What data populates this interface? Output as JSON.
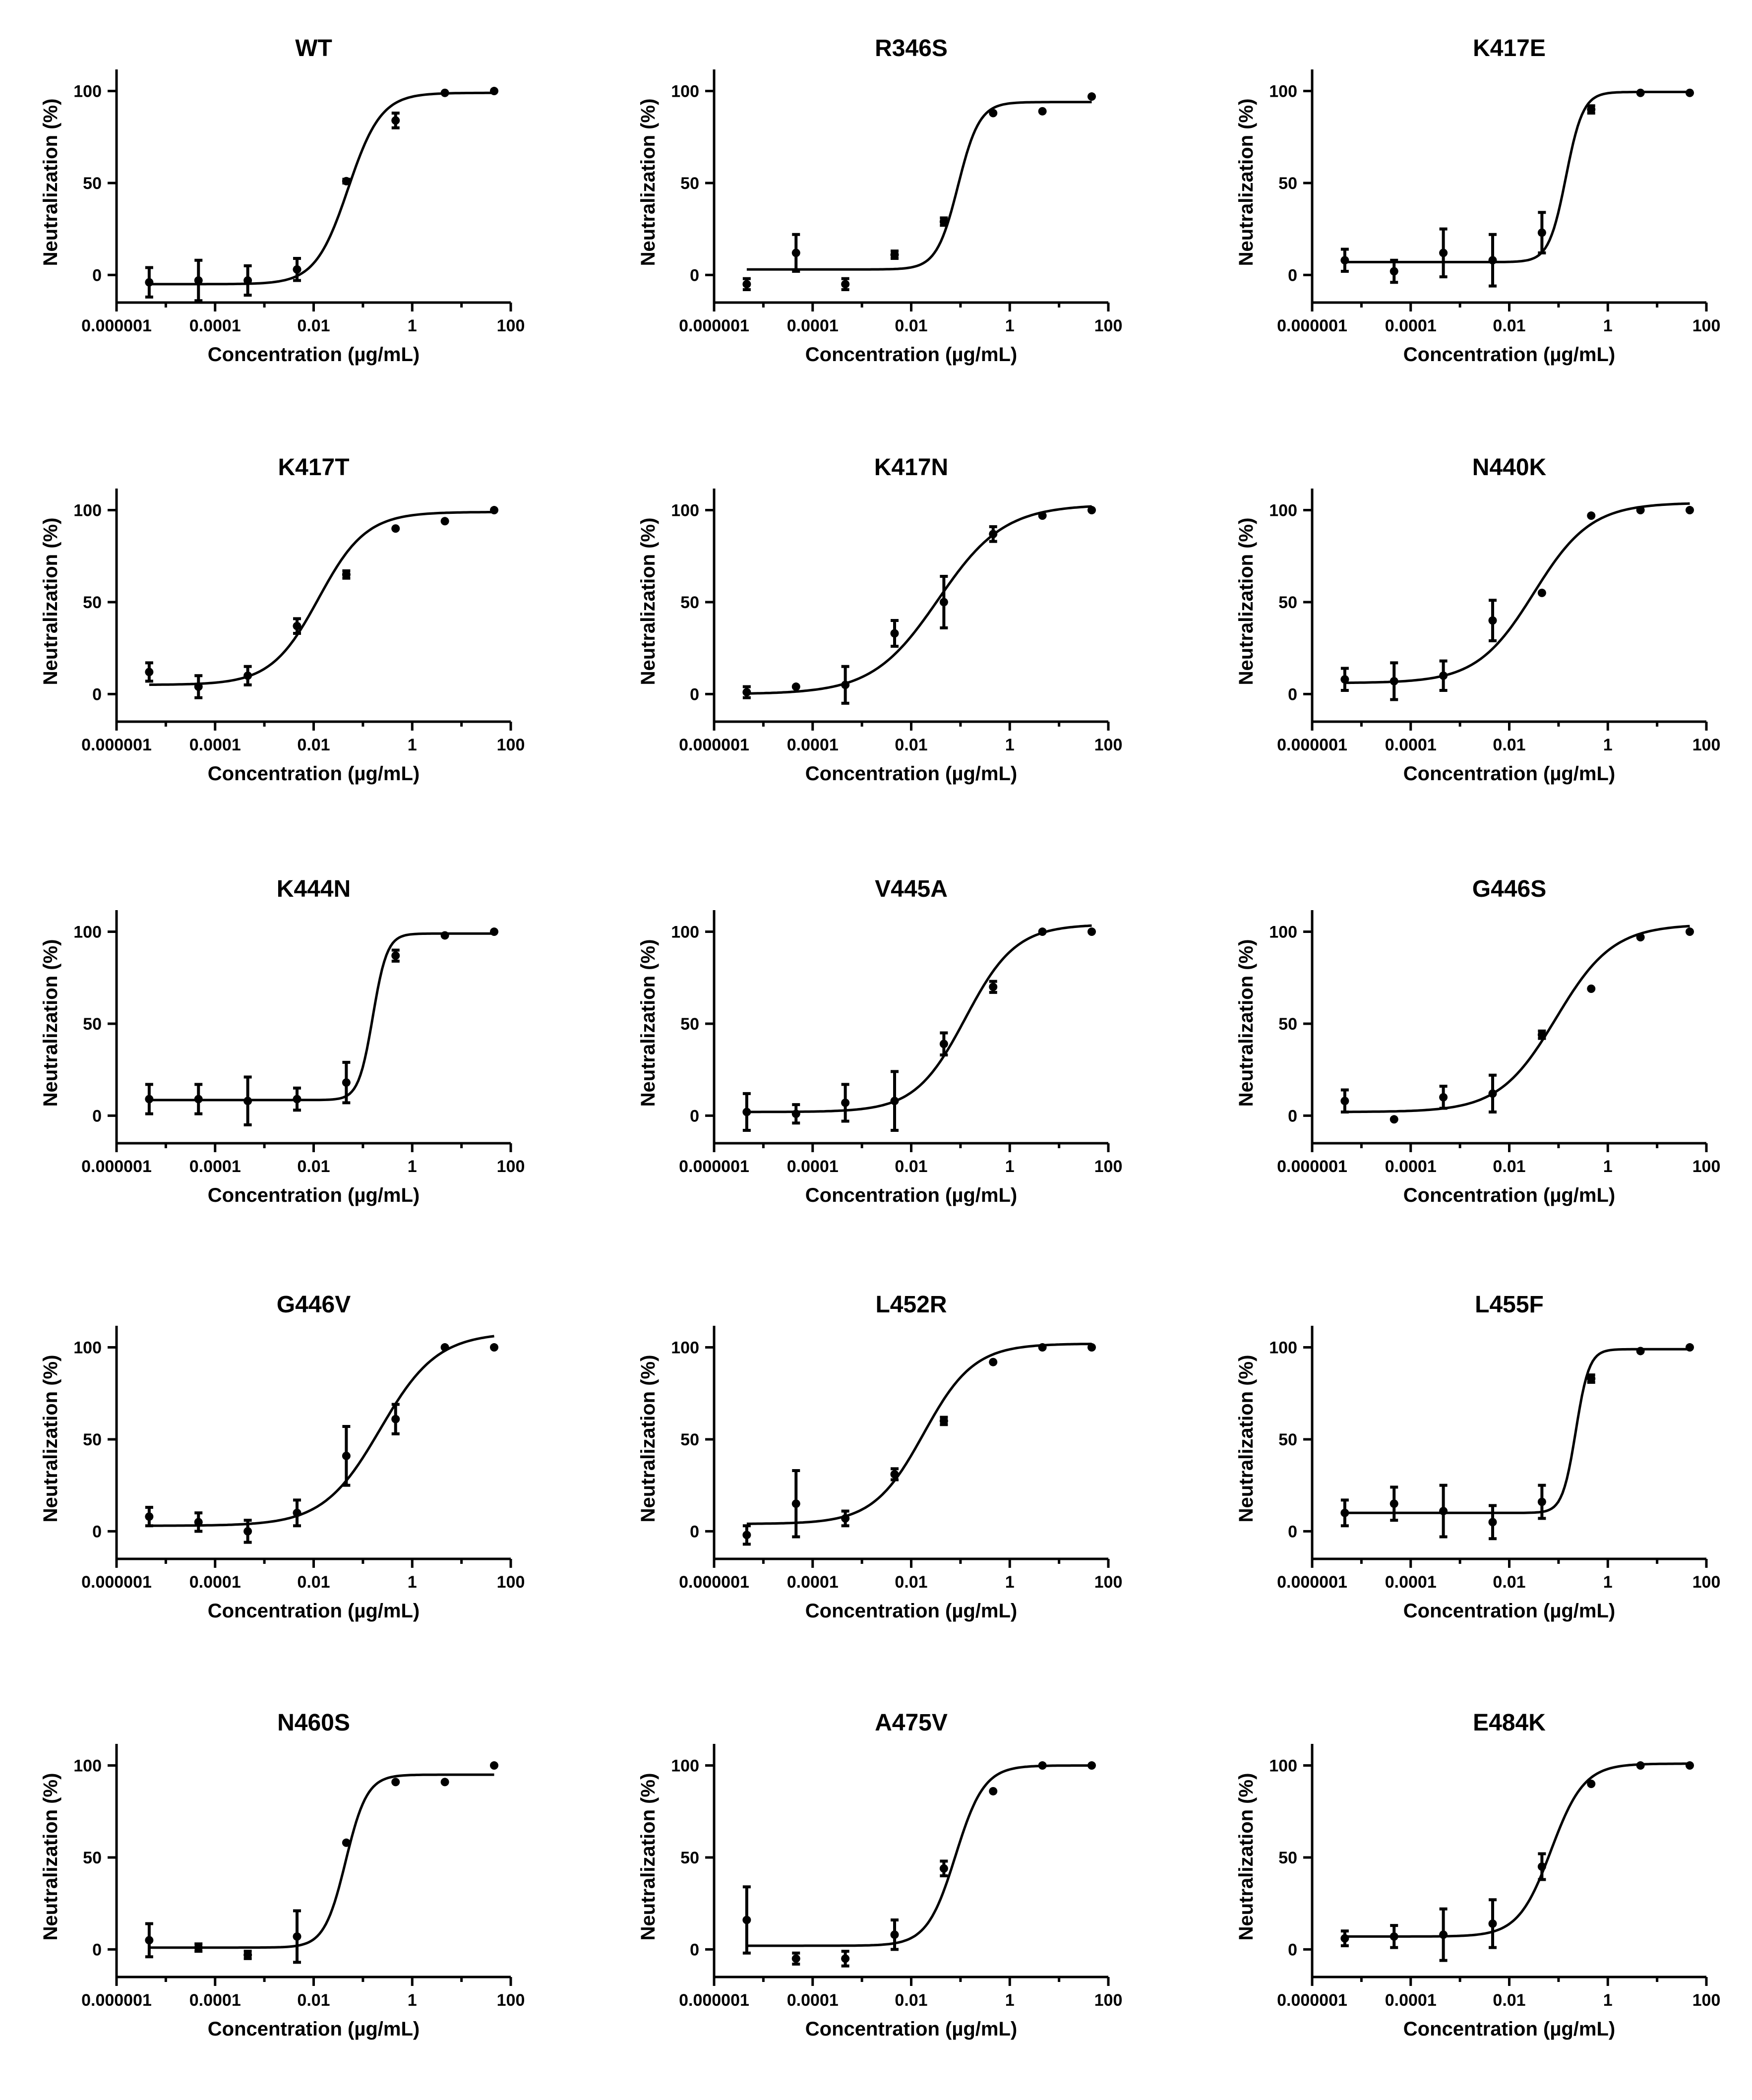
{
  "figure": {
    "x_label": "Concentration (µg/mL)",
    "y_label": "Neutralization (%)"
  },
  "chart_data": [
    {
      "type": "scatter",
      "title": "WT",
      "xlabel": "Concentration (µg/mL)",
      "ylabel": "Neutralization (%)",
      "xscale": "log10",
      "xlim": [
        1e-06,
        100
      ],
      "ylim": [
        -15,
        105
      ],
      "xticks": [
        "0.000001",
        "0.0001",
        "0.01",
        "1",
        "100"
      ],
      "yticks": [
        "0",
        "50",
        "100"
      ],
      "x": [
        4.6e-06,
        4.6e-05,
        0.00046,
        0.0046,
        0.046,
        0.46,
        4.6,
        46
      ],
      "y": [
        -4,
        -3,
        -3,
        3,
        51,
        84,
        99,
        100
      ],
      "error": [
        8,
        11,
        8,
        6,
        1,
        4,
        0,
        0
      ],
      "fit": {
        "bottom": -5,
        "top": 99,
        "log_ec50": -1.3,
        "hill": 1.3
      }
    },
    {
      "type": "scatter",
      "title": "R346S",
      "xlabel": "Concentration (µg/mL)",
      "ylabel": "Neutralization (%)",
      "xscale": "log10",
      "xlim": [
        1e-06,
        100
      ],
      "ylim": [
        -15,
        105
      ],
      "xticks": [
        "0.000001",
        "0.0001",
        "0.01",
        "1",
        "100"
      ],
      "yticks": [
        "0",
        "50",
        "100"
      ],
      "x": [
        4.6e-06,
        4.6e-05,
        0.00046,
        0.0046,
        0.046,
        0.46,
        4.6,
        46
      ],
      "y": [
        -5,
        12,
        -5,
        11,
        29,
        88,
        89,
        97
      ],
      "error": [
        3,
        10,
        3,
        2,
        2,
        0,
        0,
        0
      ],
      "fit": {
        "bottom": 3,
        "top": 94,
        "log_ec50": -1.05,
        "hill": 2.0
      }
    },
    {
      "type": "scatter",
      "title": "K417E",
      "xlabel": "Concentration (µg/mL)",
      "ylabel": "Neutralization (%)",
      "xscale": "log10",
      "xlim": [
        1e-06,
        100
      ],
      "ylim": [
        -15,
        105
      ],
      "xticks": [
        "0.000001",
        "0.0001",
        "0.01",
        "1",
        "100"
      ],
      "yticks": [
        "0",
        "50",
        "100"
      ],
      "x": [
        4.6e-06,
        4.6e-05,
        0.00046,
        0.0046,
        0.046,
        0.46,
        4.6,
        46
      ],
      "y": [
        8,
        2,
        12,
        8,
        23,
        90,
        99,
        99
      ],
      "error": [
        6,
        6,
        13,
        14,
        11,
        2,
        0,
        0
      ],
      "fit": {
        "bottom": 7,
        "top": 99.5,
        "log_ec50": -0.85,
        "hill": 2.5
      }
    },
    {
      "type": "scatter",
      "title": "K417T",
      "xlabel": "Concentration (µg/mL)",
      "ylabel": "Neutralization (%)",
      "xscale": "log10",
      "xlim": [
        1e-06,
        100
      ],
      "ylim": [
        -15,
        105
      ],
      "xticks": [
        "0.000001",
        "0.0001",
        "0.01",
        "1",
        "100"
      ],
      "yticks": [
        "0",
        "50",
        "100"
      ],
      "x": [
        4.6e-06,
        4.6e-05,
        0.00046,
        0.0046,
        0.046,
        0.46,
        4.6,
        46
      ],
      "y": [
        12,
        4,
        10,
        37,
        65,
        90,
        94,
        100
      ],
      "error": [
        5,
        6,
        5,
        4,
        2,
        0,
        0,
        0
      ],
      "fit": {
        "bottom": 5,
        "top": 99,
        "log_ec50": -1.9,
        "hill": 0.9
      }
    },
    {
      "type": "scatter",
      "title": "K417N",
      "xlabel": "Concentration (µg/mL)",
      "ylabel": "Neutralization (%)",
      "xscale": "log10",
      "xlim": [
        1e-06,
        100
      ],
      "ylim": [
        -15,
        105
      ],
      "xticks": [
        "0.000001",
        "0.0001",
        "0.01",
        "1",
        "100"
      ],
      "yticks": [
        "0",
        "50",
        "100"
      ],
      "x": [
        4.6e-06,
        4.6e-05,
        0.00046,
        0.0046,
        0.046,
        0.46,
        4.6,
        46
      ],
      "y": [
        1,
        4,
        5,
        33,
        50,
        87,
        97,
        100
      ],
      "error": [
        3,
        0,
        10,
        7,
        14,
        4,
        0,
        0
      ],
      "fit": {
        "bottom": 0,
        "top": 103,
        "log_ec50": -1.45,
        "hill": 0.65
      }
    },
    {
      "type": "scatter",
      "title": "N440K",
      "xlabel": "Concentration (µg/mL)",
      "ylabel": "Neutralization (%)",
      "xscale": "log10",
      "xlim": [
        1e-06,
        100
      ],
      "ylim": [
        -15,
        105
      ],
      "xticks": [
        "0.000001",
        "0.0001",
        "0.01",
        "1",
        "100"
      ],
      "yticks": [
        "0",
        "50",
        "100"
      ],
      "x": [
        4.6e-06,
        4.6e-05,
        0.00046,
        0.0046,
        0.046,
        0.46,
        4.6,
        46
      ],
      "y": [
        8,
        7,
        10,
        40,
        55,
        97,
        100,
        100
      ],
      "error": [
        6,
        10,
        8,
        11,
        0,
        0,
        0,
        0
      ],
      "fit": {
        "bottom": 6,
        "top": 104,
        "log_ec50": -1.5,
        "hill": 0.75
      }
    },
    {
      "type": "scatter",
      "title": "K444N",
      "xlabel": "Concentration (µg/mL)",
      "ylabel": "Neutralization (%)",
      "xscale": "log10",
      "xlim": [
        1e-06,
        100
      ],
      "ylim": [
        -15,
        105
      ],
      "xticks": [
        "0.000001",
        "0.0001",
        "0.01",
        "1",
        "100"
      ],
      "yticks": [
        "0",
        "50",
        "100"
      ],
      "x": [
        4.6e-06,
        4.6e-05,
        0.00046,
        0.0046,
        0.046,
        0.46,
        4.6,
        46
      ],
      "y": [
        9,
        9,
        8,
        9,
        18,
        87,
        98,
        100
      ],
      "error": [
        8,
        8,
        13,
        6,
        11,
        3,
        0,
        0
      ],
      "fit": {
        "bottom": 8.5,
        "top": 99,
        "log_ec50": -0.8,
        "hill": 3.0
      }
    },
    {
      "type": "scatter",
      "title": "V445A",
      "xlabel": "Concentration (µg/mL)",
      "ylabel": "Neutralization (%)",
      "xscale": "log10",
      "xlim": [
        1e-06,
        100
      ],
      "ylim": [
        -15,
        105
      ],
      "xticks": [
        "0.000001",
        "0.0001",
        "0.01",
        "1",
        "100"
      ],
      "yticks": [
        "0",
        "50",
        "100"
      ],
      "x": [
        4.6e-06,
        4.6e-05,
        0.00046,
        0.0046,
        0.046,
        0.46,
        4.6,
        46
      ],
      "y": [
        2,
        1,
        7,
        8,
        39,
        70,
        100,
        100
      ],
      "error": [
        10,
        5,
        10,
        16,
        6,
        3,
        0,
        0
      ],
      "fit": {
        "bottom": 2,
        "top": 104,
        "log_ec50": -0.9,
        "hill": 0.85
      }
    },
    {
      "type": "scatter",
      "title": "G446S",
      "xlabel": "Concentration (µg/mL)",
      "ylabel": "Neutralization (%)",
      "xscale": "log10",
      "xlim": [
        1e-06,
        100
      ],
      "ylim": [
        -15,
        105
      ],
      "xticks": [
        "0.000001",
        "0.0001",
        "0.01",
        "1",
        "100"
      ],
      "yticks": [
        "0",
        "50",
        "100"
      ],
      "x": [
        4.6e-06,
        4.6e-05,
        0.00046,
        0.0046,
        0.046,
        0.46,
        4.6,
        46
      ],
      "y": [
        8,
        -2,
        10,
        12,
        44,
        69,
        97,
        100
      ],
      "error": [
        6,
        0,
        6,
        10,
        2,
        0,
        0,
        0
      ],
      "fit": {
        "bottom": 2,
        "top": 104,
        "log_ec50": -1.05,
        "hill": 0.75
      }
    },
    {
      "type": "scatter",
      "title": "G446V",
      "xlabel": "Concentration (µg/mL)",
      "ylabel": "Neutralization (%)",
      "xscale": "log10",
      "xlim": [
        1e-06,
        100
      ],
      "ylim": [
        -15,
        105
      ],
      "xticks": [
        "0.000001",
        "0.0001",
        "0.01",
        "1",
        "100"
      ],
      "yticks": [
        "0",
        "50",
        "100"
      ],
      "x": [
        4.6e-06,
        4.6e-05,
        0.00046,
        0.0046,
        0.046,
        0.46,
        4.6,
        46
      ],
      "y": [
        8,
        5,
        0,
        10,
        41,
        61,
        100,
        100
      ],
      "error": [
        5,
        5,
        6,
        7,
        16,
        8,
        0,
        0
      ],
      "fit": {
        "bottom": 3,
        "top": 108,
        "log_ec50": -0.65,
        "hill": 0.75
      }
    },
    {
      "type": "scatter",
      "title": "L452R",
      "xlabel": "Concentration (µg/mL)",
      "ylabel": "Neutralization (%)",
      "xscale": "log10",
      "xlim": [
        1e-06,
        100
      ],
      "ylim": [
        -15,
        105
      ],
      "xticks": [
        "0.000001",
        "0.0001",
        "0.01",
        "1",
        "100"
      ],
      "yticks": [
        "0",
        "50",
        "100"
      ],
      "x": [
        4.6e-06,
        4.6e-05,
        0.00046,
        0.0046,
        0.046,
        0.46,
        4.6,
        46
      ],
      "y": [
        -2,
        15,
        7,
        31,
        60,
        92,
        100,
        100
      ],
      "error": [
        5,
        18,
        4,
        3,
        2,
        0,
        0,
        0
      ],
      "fit": {
        "bottom": 4,
        "top": 102,
        "log_ec50": -1.75,
        "hill": 0.85
      }
    },
    {
      "type": "scatter",
      "title": "L455F",
      "xlabel": "Concentration (µg/mL)",
      "ylabel": "Neutralization (%)",
      "xscale": "log10",
      "xlim": [
        1e-06,
        100
      ],
      "ylim": [
        -15,
        105
      ],
      "xticks": [
        "0.000001",
        "0.0001",
        "0.01",
        "1",
        "100"
      ],
      "yticks": [
        "0",
        "50",
        "100"
      ],
      "x": [
        4.6e-06,
        4.6e-05,
        0.00046,
        0.0046,
        0.046,
        0.46,
        4.6,
        46
      ],
      "y": [
        10,
        15,
        11,
        5,
        16,
        83,
        98,
        100
      ],
      "error": [
        7,
        9,
        14,
        9,
        9,
        2,
        0,
        0
      ],
      "fit": {
        "bottom": 10,
        "top": 99,
        "log_ec50": -0.65,
        "hill": 3.2
      }
    },
    {
      "type": "scatter",
      "title": "N460S",
      "xlabel": "Concentration (µg/mL)",
      "ylabel": "Neutralization (%)",
      "xscale": "log10",
      "xlim": [
        1e-06,
        100
      ],
      "ylim": [
        -15,
        105
      ],
      "xticks": [
        "0.000001",
        "0.0001",
        "0.01",
        "1",
        "100"
      ],
      "yticks": [
        "0",
        "50",
        "100"
      ],
      "x": [
        4.6e-06,
        4.6e-05,
        0.00046,
        0.0046,
        0.046,
        0.46,
        4.6,
        46
      ],
      "y": [
        5,
        1,
        -3,
        7,
        58,
        91,
        91,
        100
      ],
      "error": [
        9,
        2,
        2,
        14,
        0,
        0,
        0,
        0
      ],
      "fit": {
        "bottom": 1,
        "top": 95,
        "log_ec50": -1.35,
        "hill": 2.0
      }
    },
    {
      "type": "scatter",
      "title": "A475V",
      "xlabel": "Concentration (µg/mL)",
      "ylabel": "Neutralization (%)",
      "xscale": "log10",
      "xlim": [
        1e-06,
        100
      ],
      "ylim": [
        -15,
        105
      ],
      "xticks": [
        "0.000001",
        "0.0001",
        "0.01",
        "1",
        "100"
      ],
      "yticks": [
        "0",
        "50",
        "100"
      ],
      "x": [
        4.6e-06,
        4.6e-05,
        0.00046,
        0.0046,
        0.046,
        0.46,
        4.6,
        46
      ],
      "y": [
        16,
        -5,
        -5,
        8,
        44,
        86,
        100,
        100
      ],
      "error": [
        18,
        3,
        4,
        8,
        4,
        0,
        0,
        0
      ],
      "fit": {
        "bottom": 2,
        "top": 100,
        "log_ec50": -1.1,
        "hill": 1.5
      }
    },
    {
      "type": "scatter",
      "title": "E484K",
      "xlabel": "Concentration (µg/mL)",
      "ylabel": "Neutralization (%)",
      "xscale": "log10",
      "xlim": [
        1e-06,
        100
      ],
      "ylim": [
        -15,
        105
      ],
      "xticks": [
        "0.000001",
        "0.0001",
        "0.01",
        "1",
        "100"
      ],
      "yticks": [
        "0",
        "50",
        "100"
      ],
      "x": [
        4.6e-06,
        4.6e-05,
        0.00046,
        0.0046,
        0.046,
        0.46,
        4.6,
        46
      ],
      "y": [
        6,
        7,
        8,
        14,
        45,
        90,
        100,
        100
      ],
      "error": [
        4,
        6,
        14,
        13,
        7,
        0,
        0,
        0
      ],
      "fit": {
        "bottom": 7,
        "top": 101,
        "log_ec50": -1.15,
        "hill": 1.3
      }
    }
  ]
}
